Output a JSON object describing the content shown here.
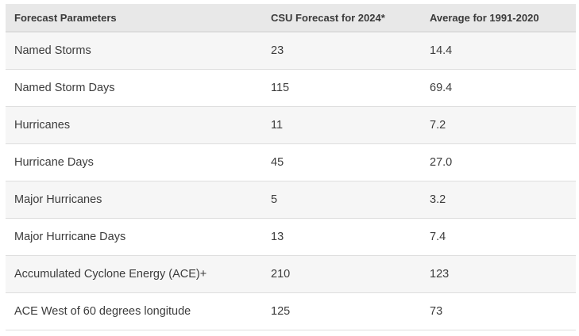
{
  "table": {
    "headers": [
      "Forecast Parameters",
      "CSU Forecast for 2024*",
      "Average for 1991-2020"
    ],
    "rows": [
      [
        "Named Storms",
        "23",
        "14.4"
      ],
      [
        "Named Storm Days",
        "115",
        "69.4"
      ],
      [
        "Hurricanes",
        "11",
        "7.2"
      ],
      [
        "Hurricane Days",
        "45",
        "27.0"
      ],
      [
        "Major Hurricanes",
        "5",
        "3.2"
      ],
      [
        "Major Hurricane Days",
        "13",
        "7.4"
      ],
      [
        "Accumulated Cyclone Energy (ACE)+",
        "210",
        "123"
      ],
      [
        "ACE West of 60 degrees longitude",
        "125",
        "73"
      ]
    ]
  }
}
